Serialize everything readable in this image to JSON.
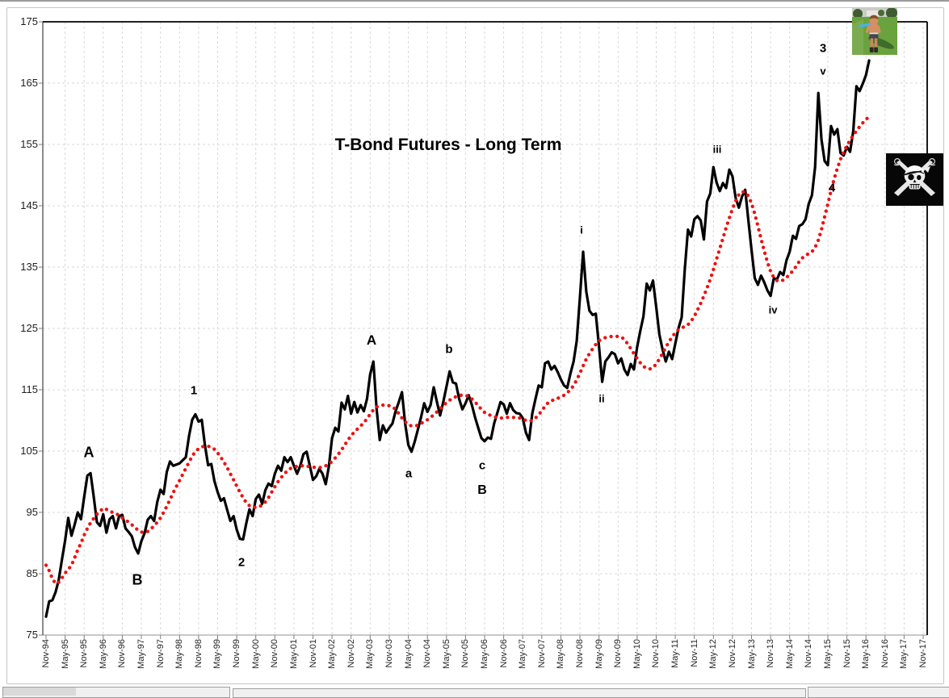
{
  "chart_data": {
    "type": "line",
    "title": "T-Bond Futures - Long Term",
    "xlabel": "",
    "ylabel": "",
    "ylim": [
      75,
      175
    ],
    "y_ticks": [
      75,
      85,
      95,
      105,
      115,
      125,
      135,
      145,
      155,
      165,
      175
    ],
    "x_tick_labels": [
      "Nov-94",
      "May-95",
      "Nov-95",
      "May-96",
      "Nov-96",
      "May-97",
      "Nov-97",
      "May-98",
      "Nov-98",
      "May-99",
      "Nov-99",
      "May-00",
      "Nov-00",
      "May-01",
      "Nov-01",
      "May-02",
      "Nov-02",
      "May-03",
      "Nov-03",
      "May-04",
      "Nov-04",
      "May-05",
      "Nov-05",
      "May-06",
      "Nov-06",
      "May-07",
      "Nov-07",
      "May-08",
      "Nov-08",
      "May-09",
      "Nov-09",
      "May-10",
      "Nov-10",
      "May-11",
      "Nov-11",
      "May-12",
      "Nov-12",
      "May-13",
      "Nov-13",
      "May-14",
      "Nov-14",
      "May-15",
      "Nov-15",
      "May-16",
      "Nov-16",
      "May-17",
      "Nov-17"
    ],
    "months_per_tick": 6,
    "grid": {
      "vertical": true,
      "horizontal": true,
      "style": "dashed",
      "color": "#d9d9d9"
    },
    "axis_color": "#8c8c8c",
    "border_color": "#000000",
    "series": [
      {
        "name": "T-Bond futures price",
        "style": "solid",
        "color": "#000000",
        "start_month": "Nov-94",
        "values": [
          78.0,
          80.5,
          80.7,
          82.0,
          84.0,
          87.3,
          90.4,
          94.1,
          91.2,
          93.0,
          95.0,
          93.9,
          97.5,
          101.0,
          101.4,
          97.6,
          93.4,
          92.8,
          94.7,
          91.7,
          93.9,
          94.4,
          92.4,
          94.4,
          94.6,
          92.4,
          91.8,
          91.1,
          89.3,
          88.3,
          90.3,
          91.6,
          93.8,
          94.4,
          93.6,
          96.7,
          98.7,
          98.0,
          101.6,
          103.3,
          102.6,
          102.8,
          103.0,
          103.5,
          104.0,
          107.5,
          110.1,
          111.0,
          109.8,
          110.1,
          106.0,
          102.7,
          102.9,
          100.1,
          98.3,
          96.9,
          97.3,
          95.4,
          93.6,
          94.4,
          92.2,
          90.7,
          90.6,
          93.2,
          95.5,
          94.4,
          97.2,
          97.9,
          96.4,
          98.6,
          99.7,
          99.3,
          101.3,
          102.6,
          101.8,
          104.0,
          103.2,
          104.0,
          102.6,
          101.3,
          102.6,
          104.5,
          104.9,
          102.6,
          100.3,
          100.9,
          102.1,
          101.3,
          99.6,
          102.5,
          107.1,
          108.8,
          108.2,
          112.9,
          111.8,
          114.0,
          111.1,
          113.0,
          111.3,
          112.5,
          111.5,
          113.5,
          117.5,
          119.6,
          112.0,
          106.8,
          109.2,
          108.0,
          108.8,
          109.5,
          111.5,
          113.0,
          114.6,
          109.5,
          106.0,
          104.9,
          106.5,
          108.5,
          110.5,
          112.8,
          111.4,
          112.5,
          115.4,
          113.0,
          110.8,
          113.0,
          115.5,
          118.0,
          116.2,
          116.0,
          113.5,
          111.8,
          112.8,
          114.1,
          112.5,
          110.5,
          108.8,
          107.1,
          106.6,
          107.2,
          107.0,
          109.5,
          111.2,
          113.0,
          112.6,
          111.1,
          112.8,
          111.7,
          111.2,
          111.1,
          110.4,
          108.0,
          106.8,
          111.1,
          113.5,
          115.7,
          115.4,
          119.3,
          119.6,
          118.3,
          118.9,
          117.9,
          116.7,
          115.7,
          115.3,
          117.6,
          119.6,
          123.0,
          130.0,
          137.5,
          131.0,
          127.9,
          127.2,
          127.4,
          122.0,
          116.3,
          119.6,
          120.3,
          121.1,
          120.8,
          119.3,
          120.1,
          118.3,
          117.4,
          119.2,
          118.3,
          122.0,
          124.6,
          127.0,
          132.3,
          131.2,
          132.8,
          128.5,
          124.0,
          121.6,
          119.6,
          121.2,
          120.0,
          122.5,
          125.0,
          126.8,
          134.7,
          141.1,
          140.0,
          142.8,
          143.3,
          142.6,
          139.5,
          145.7,
          147.0,
          151.3,
          148.8,
          147.4,
          148.7,
          147.9,
          150.9,
          149.8,
          146.3,
          144.7,
          146.5,
          147.6,
          142.6,
          137.8,
          133.2,
          132.1,
          133.6,
          132.5,
          131.2,
          130.3,
          133.2,
          133.0,
          134.2,
          133.7,
          136.1,
          137.5,
          140.1,
          139.6,
          141.7,
          142.0,
          142.8,
          145.3,
          146.7,
          151.3,
          163.4,
          155.8,
          152.3,
          151.6,
          158.0,
          156.6,
          157.5,
          153.6,
          153.2,
          154.6,
          153.8,
          157.1,
          164.5,
          163.7,
          164.9,
          166.3,
          168.7
        ]
      },
      {
        "name": "moving average",
        "style": "dotted",
        "color": "#ee1111",
        "start_month": "Nov-94",
        "values": [
          86.4,
          85.5,
          84.2,
          83.4,
          83.6,
          84.3,
          85.1,
          85.7,
          86.4,
          87.6,
          88.9,
          90.0,
          91.3,
          92.4,
          93.3,
          94.0,
          94.7,
          95.2,
          95.7,
          95.5,
          95.2,
          95.0,
          94.8,
          94.5,
          94.1,
          93.8,
          93.4,
          93.0,
          92.5,
          92.1,
          91.8,
          91.7,
          91.9,
          92.3,
          92.8,
          93.4,
          94.1,
          95.0,
          96.0,
          97.1,
          98.2,
          99.2,
          100.2,
          101.2,
          102.2,
          103.2,
          104.2,
          104.9,
          105.4,
          105.7,
          105.8,
          105.8,
          105.6,
          105.3,
          104.7,
          104.0,
          103.2,
          102.3,
          101.3,
          100.3,
          99.3,
          98.3,
          97.4,
          96.6,
          96.1,
          95.9,
          95.8,
          95.9,
          96.2,
          96.7,
          97.4,
          98.3,
          99.2,
          100.0,
          100.7,
          101.3,
          101.8,
          102.2,
          102.4,
          102.5,
          102.6,
          102.6,
          102.5,
          102.5,
          102.4,
          102.3,
          102.3,
          102.4,
          102.6,
          102.9,
          103.3,
          103.9,
          104.5,
          105.2,
          106.0,
          106.8,
          107.5,
          108.1,
          108.6,
          109.1,
          109.6,
          110.3,
          111.0,
          111.7,
          112.2,
          112.4,
          112.5,
          112.5,
          112.4,
          112.2,
          111.8,
          111.1,
          110.4,
          109.8,
          109.3,
          109.1,
          109.1,
          109.2,
          109.5,
          109.8,
          110.1,
          110.5,
          110.9,
          111.4,
          111.9,
          112.4,
          112.9,
          113.3,
          113.6,
          113.9,
          114.1,
          114.1,
          114.1,
          113.9,
          113.5,
          113.0,
          112.4,
          111.8,
          111.3,
          111.0,
          110.8,
          110.6,
          110.5,
          110.4,
          110.4,
          110.5,
          110.5,
          110.5,
          110.4,
          110.4,
          110.2,
          110.0,
          109.9,
          110.0,
          110.4,
          110.9,
          111.6,
          112.3,
          112.9,
          113.2,
          113.4,
          113.6,
          113.8,
          114.1,
          114.5,
          115.0,
          115.7,
          116.6,
          117.7,
          118.9,
          120.0,
          120.9,
          121.7,
          122.4,
          123.0,
          123.3,
          123.5,
          123.6,
          123.7,
          123.7,
          123.7,
          123.6,
          123.2,
          122.5,
          121.7,
          120.9,
          120.1,
          119.4,
          118.8,
          118.5,
          118.4,
          118.6,
          119.2,
          120.0,
          120.9,
          121.9,
          122.8,
          123.6,
          124.3,
          124.8,
          125.1,
          125.3,
          125.6,
          126.2,
          127.0,
          128.0,
          129.1,
          130.3,
          131.6,
          133.0,
          134.6,
          136.3,
          138.0,
          139.7,
          141.4,
          143.0,
          144.5,
          145.8,
          146.8,
          147.3,
          147.2,
          146.6,
          145.4,
          143.7,
          141.7,
          139.6,
          137.6,
          135.8,
          134.3,
          133.3,
          132.8,
          132.7,
          132.9,
          133.3,
          133.8,
          134.4,
          135.1,
          135.9,
          136.5,
          136.9,
          137.2,
          137.5,
          138.2,
          139.4,
          141.1,
          143.2,
          145.3,
          147.4,
          149.4,
          151.1,
          152.6,
          153.8,
          154.8,
          155.7,
          156.5,
          157.2,
          157.9,
          158.5,
          159.1,
          159.5
        ]
      }
    ],
    "annotations": [
      {
        "text": "A",
        "m": 13.5,
        "v": 104.7,
        "size": 18
      },
      {
        "text": "B",
        "m": 28.7,
        "v": 83.9,
        "size": 18
      },
      {
        "text": "1",
        "m": 46.5,
        "v": 114.9,
        "size": 15
      },
      {
        "text": "2",
        "m": 61.5,
        "v": 86.8,
        "size": 15
      },
      {
        "text": "A",
        "m": 102.4,
        "v": 123.0,
        "size": 17
      },
      {
        "text": "a",
        "m": 114.1,
        "v": 101.3,
        "size": 15
      },
      {
        "text": "b",
        "m": 126.8,
        "v": 121.6,
        "size": 15
      },
      {
        "text": "c",
        "m": 137.3,
        "v": 102.6,
        "size": 15
      },
      {
        "text": "B",
        "m": 137.3,
        "v": 98.6,
        "size": 16
      },
      {
        "text": "i",
        "m": 168.5,
        "v": 141.1,
        "size": 13
      },
      {
        "text": "ii",
        "m": 174.9,
        "v": 113.6,
        "size": 13
      },
      {
        "text": "iii",
        "m": 211.2,
        "v": 154.2,
        "size": 13
      },
      {
        "text": "iv",
        "m": 228.8,
        "v": 128.0,
        "size": 13
      },
      {
        "text": "3",
        "m": 244.5,
        "v": 170.7,
        "size": 15
      },
      {
        "text": "v",
        "m": 244.5,
        "v": 167.0,
        "size": 13
      },
      {
        "text": "4",
        "m": 247.3,
        "v": 147.9,
        "size": 15
      }
    ],
    "legend": "none"
  },
  "images": {
    "kid_photo_alt": "photo of a boy holding a toy sword on a lawn",
    "pirate_flag_alt": "pirate skull with bandana, eye patch and crossed swords on black flag"
  }
}
